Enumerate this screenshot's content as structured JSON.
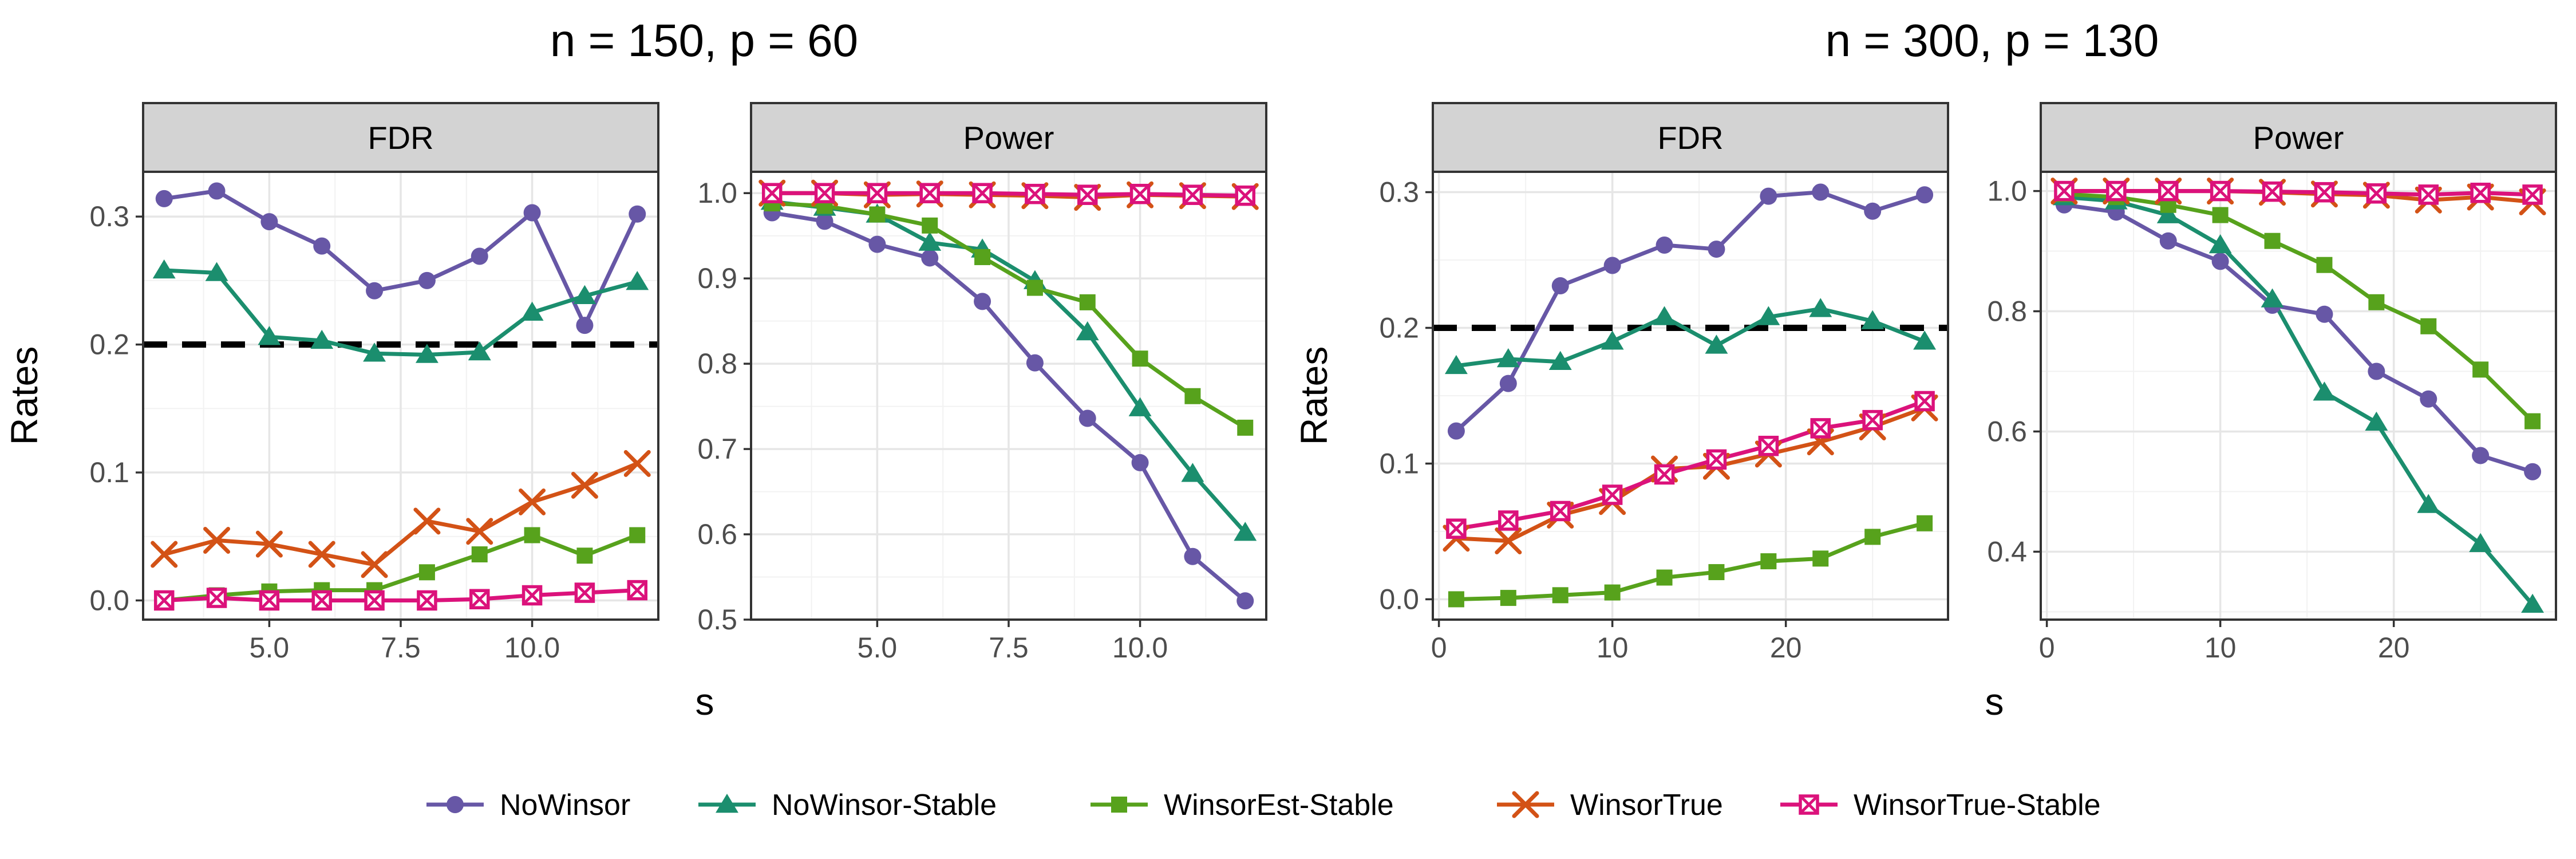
{
  "colors": {
    "NoWinsor": "#6757A6",
    "NoWinsor-Stable": "#1B8E6E",
    "WinsorEst-Stable": "#57A21C",
    "WinsorTrue": "#D35216",
    "WinsorTrue-Stable": "#DB127B",
    "strip_fill": "#d3d3d3",
    "grid_major": "#e6e6e6",
    "grid_minor": "#f2f2f2",
    "reference_line": "#000000"
  },
  "labels": {
    "ylabel": "Rates",
    "xlabel": "s"
  },
  "legend": [
    {
      "name": "NoWinsor",
      "marker": "circle"
    },
    {
      "name": "NoWinsor-Stable",
      "marker": "triangle"
    },
    {
      "name": "WinsorEst-Stable",
      "marker": "square"
    },
    {
      "name": "WinsorTrue",
      "marker": "x"
    },
    {
      "name": "WinsorTrue-Stable",
      "marker": "boxx"
    }
  ],
  "chart_data": [
    {
      "type": "line",
      "title": "n = 150, p = 60",
      "xlabel": "s",
      "ylabel": "Rates",
      "x": [
        3,
        4,
        5,
        6,
        7,
        8,
        9,
        10,
        11,
        12
      ],
      "xlim": [
        2.6,
        12.4
      ],
      "xticks": [
        5.0,
        7.5,
        10.0
      ],
      "xtick_labels": [
        "5.0",
        "7.5",
        "10.0"
      ],
      "panels": [
        {
          "strip": "FDR",
          "ylim": [
            -0.015,
            0.335
          ],
          "yticks": [
            0.0,
            0.1,
            0.2,
            0.3
          ],
          "ytick_labels": [
            "0.0",
            "0.1",
            "0.2",
            "0.3"
          ],
          "hline": 0.2,
          "series": [
            {
              "name": "NoWinsor",
              "values": [
                0.314,
                0.32,
                0.296,
                0.277,
                0.242,
                0.25,
                0.269,
                0.303,
                0.215,
                0.302
              ]
            },
            {
              "name": "NoWinsor-Stable",
              "values": [
                0.258,
                0.256,
                0.206,
                0.203,
                0.193,
                0.192,
                0.194,
                0.225,
                0.238,
                0.249
              ]
            },
            {
              "name": "WinsorEst-Stable",
              "values": [
                0.0,
                0.004,
                0.007,
                0.008,
                0.008,
                0.022,
                0.036,
                0.051,
                0.035,
                0.051
              ]
            },
            {
              "name": "WinsorTrue",
              "values": [
                0.036,
                0.047,
                0.044,
                0.036,
                0.028,
                0.062,
                0.054,
                0.077,
                0.09,
                0.107
              ]
            },
            {
              "name": "WinsorTrue-Stable",
              "values": [
                0.0,
                0.002,
                0.0,
                0.0,
                0.0,
                0.0,
                0.001,
                0.004,
                0.006,
                0.008
              ]
            }
          ]
        },
        {
          "strip": "Power",
          "ylim": [
            0.5,
            1.025
          ],
          "yticks": [
            0.5,
            0.6,
            0.7,
            0.8,
            0.9,
            1.0
          ],
          "ytick_labels": [
            "0.5",
            "0.6",
            "0.7",
            "0.8",
            "0.9",
            "1.0"
          ],
          "series": [
            {
              "name": "NoWinsor",
              "values": [
                0.977,
                0.967,
                0.94,
                0.924,
                0.873,
                0.801,
                0.736,
                0.684,
                0.574,
                0.522
              ]
            },
            {
              "name": "NoWinsor-Stable",
              "values": [
                0.99,
                0.983,
                0.975,
                0.942,
                0.934,
                0.897,
                0.837,
                0.748,
                0.671,
                0.602
              ]
            },
            {
              "name": "WinsorEst-Stable",
              "values": [
                0.988,
                0.985,
                0.975,
                0.962,
                0.925,
                0.889,
                0.872,
                0.806,
                0.762,
                0.725
              ]
            },
            {
              "name": "WinsorTrue",
              "values": [
                1.0,
                1.0,
                0.998,
                0.999,
                0.998,
                0.997,
                0.995,
                0.998,
                0.997,
                0.996
              ]
            },
            {
              "name": "WinsorTrue-Stable",
              "values": [
                1.0,
                1.0,
                1.0,
                1.0,
                1.0,
                0.999,
                0.998,
                0.999,
                0.998,
                0.997
              ]
            }
          ]
        }
      ]
    },
    {
      "type": "line",
      "title": "n = 300, p = 130",
      "xlabel": "s",
      "ylabel": "Rates",
      "x": [
        1,
        4,
        7,
        10,
        13,
        16,
        19,
        22,
        25,
        28
      ],
      "xlim": [
        -0.35,
        29.35
      ],
      "xticks": [
        0,
        10,
        20
      ],
      "xtick_labels": [
        "0",
        "10",
        "20"
      ],
      "panels": [
        {
          "strip": "FDR",
          "ylim": [
            -0.015,
            0.315
          ],
          "yticks": [
            0.0,
            0.1,
            0.2,
            0.3
          ],
          "ytick_labels": [
            "0.0",
            "0.1",
            "0.2",
            "0.3"
          ],
          "hline": 0.2,
          "series": [
            {
              "name": "NoWinsor",
              "values": [
                0.124,
                0.159,
                0.231,
                0.246,
                0.261,
                0.258,
                0.297,
                0.3,
                0.286,
                0.298
              ]
            },
            {
              "name": "NoWinsor-Stable",
              "values": [
                0.172,
                0.177,
                0.175,
                0.19,
                0.208,
                0.187,
                0.208,
                0.214,
                0.205,
                0.19
              ]
            },
            {
              "name": "WinsorEst-Stable",
              "values": [
                0.0,
                0.001,
                0.003,
                0.005,
                0.016,
                0.02,
                0.028,
                0.03,
                0.046,
                0.056
              ]
            },
            {
              "name": "WinsorTrue",
              "values": [
                0.045,
                0.043,
                0.062,
                0.072,
                0.096,
                0.098,
                0.107,
                0.116,
                0.127,
                0.141
              ]
            },
            {
              "name": "WinsorTrue-Stable",
              "values": [
                0.052,
                0.058,
                0.065,
                0.077,
                0.092,
                0.103,
                0.113,
                0.126,
                0.132,
                0.146
              ]
            }
          ]
        },
        {
          "strip": "Power",
          "ylim": [
            0.287,
            1.032
          ],
          "yticks": [
            0.4,
            0.6,
            0.8,
            1.0
          ],
          "ytick_labels": [
            "0.4",
            "0.6",
            "0.8",
            "1.0"
          ],
          "series": [
            {
              "name": "NoWinsor",
              "values": [
                0.977,
                0.965,
                0.917,
                0.883,
                0.81,
                0.795,
                0.7,
                0.654,
                0.56,
                0.533
              ]
            },
            {
              "name": "NoWinsor-Stable",
              "values": [
                0.99,
                0.983,
                0.96,
                0.91,
                0.82,
                0.665,
                0.615,
                0.478,
                0.413,
                0.312
              ]
            },
            {
              "name": "WinsorEst-Stable",
              "values": [
                0.995,
                0.99,
                0.977,
                0.96,
                0.917,
                0.877,
                0.815,
                0.775,
                0.703,
                0.617
              ]
            },
            {
              "name": "WinsorTrue",
              "values": [
                1.0,
                1.0,
                1.0,
                1.0,
                0.998,
                0.995,
                0.993,
                0.985,
                0.99,
                0.982
              ]
            },
            {
              "name": "WinsorTrue-Stable",
              "values": [
                1.0,
                1.0,
                1.0,
                1.0,
                0.999,
                0.998,
                0.996,
                0.994,
                0.997,
                0.994
              ]
            }
          ]
        }
      ]
    }
  ]
}
